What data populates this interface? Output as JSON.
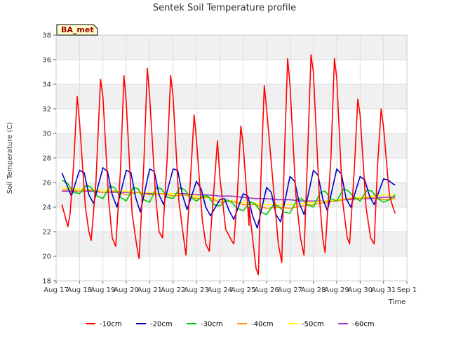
{
  "chart_data": {
    "type": "line",
    "title": "Sentek Soil Temperature profile",
    "xlabel": "Time",
    "ylabel": "Soil Temperature (C)",
    "badge": "BA_met",
    "badge_color": "#990000",
    "badge_fill": "#ffffcc",
    "ylim": [
      18,
      38
    ],
    "yticks": [
      18,
      20,
      22,
      24,
      26,
      28,
      30,
      32,
      34,
      36,
      38
    ],
    "xlim": [
      17,
      32
    ],
    "xticks": [
      {
        "value": 17,
        "label": "Aug 17"
      },
      {
        "value": 18,
        "label": "Aug 18"
      },
      {
        "value": 19,
        "label": "Aug 19"
      },
      {
        "value": 20,
        "label": "Aug 20"
      },
      {
        "value": 21,
        "label": "Aug 21"
      },
      {
        "value": 22,
        "label": "Aug 22"
      },
      {
        "value": 23,
        "label": "Aug 23"
      },
      {
        "value": 24,
        "label": "Aug 24"
      },
      {
        "value": 25,
        "label": "Aug 25"
      },
      {
        "value": 26,
        "label": "Aug 26"
      },
      {
        "value": 27,
        "label": "Aug 27"
      },
      {
        "value": 28,
        "label": "Aug 28"
      },
      {
        "value": 29,
        "label": "Aug 29"
      },
      {
        "value": 30,
        "label": "Aug 30"
      },
      {
        "value": 31,
        "label": "Aug 31"
      },
      {
        "value": 32,
        "label": "Sep 1"
      }
    ],
    "series": [
      {
        "name": "-10cm",
        "color": "#ff0000",
        "x": [
          17.25,
          17.5,
          17.6,
          17.75,
          17.9,
          18.0,
          18.25,
          18.4,
          18.5,
          18.7,
          18.9,
          19.0,
          19.25,
          19.4,
          19.55,
          19.75,
          19.9,
          20.0,
          20.25,
          20.45,
          20.55,
          20.75,
          20.9,
          21.0,
          21.25,
          21.4,
          21.55,
          21.75,
          21.9,
          22.0,
          22.25,
          22.45,
          22.55,
          22.75,
          22.9,
          23.0,
          23.25,
          23.4,
          23.55,
          23.75,
          23.9,
          24.0,
          24.25,
          24.5,
          24.6,
          24.75,
          24.9,
          25.0,
          25.25,
          25.55,
          25.65,
          25.75,
          25.9,
          26.0,
          25.25,
          26.5,
          26.65,
          26.75,
          26.9,
          27.0,
          27.25,
          27.45,
          27.6,
          27.75,
          27.9,
          28.0,
          28.25,
          28.4,
          28.5,
          28.75,
          28.9,
          29.0,
          29.25,
          29.45,
          29.55,
          29.75,
          29.9,
          30.0,
          30.25,
          30.45,
          30.6,
          30.75,
          30.9,
          31.0,
          31.25,
          31.4,
          31.5
        ],
        "values": [
          24.2,
          22.4,
          23.5,
          27.5,
          33.0,
          31.0,
          24.0,
          22.0,
          21.3,
          26.0,
          34.4,
          33.0,
          24.5,
          21.5,
          20.8,
          27.0,
          34.7,
          32.5,
          23.5,
          20.8,
          19.8,
          27.5,
          35.3,
          33.0,
          25.0,
          22.0,
          21.5,
          28.0,
          34.7,
          33.0,
          24.5,
          21.5,
          20.1,
          26.5,
          31.5,
          29.5,
          23.0,
          21.0,
          20.4,
          25.5,
          29.4,
          26.5,
          22.2,
          21.3,
          21.0,
          25.0,
          30.6,
          29.0,
          22.5,
          19.0,
          18.5,
          26.0,
          33.9,
          32.0,
          24.0,
          21.0,
          19.5,
          27.5,
          36.1,
          34.0,
          25.0,
          21.5,
          20.1,
          28.0,
          36.4,
          35.0,
          25.0,
          21.5,
          20.3,
          28.0,
          36.1,
          34.5,
          24.5,
          21.5,
          21.0,
          27.0,
          32.8,
          31.5,
          24.0,
          21.5,
          21.0,
          27.5,
          32.0,
          30.5,
          25.0,
          24.0,
          23.5
        ]
      },
      {
        "name": "-20cm",
        "color": "#0000cc",
        "x": [
          17.25,
          17.5,
          17.65,
          18.0,
          18.2,
          18.4,
          18.6,
          19.0,
          19.2,
          19.4,
          19.6,
          20.0,
          20.2,
          20.4,
          20.6,
          21.0,
          21.2,
          21.4,
          21.6,
          22.0,
          22.2,
          22.4,
          22.6,
          23.0,
          23.2,
          23.4,
          23.6,
          24.0,
          24.2,
          24.4,
          24.6,
          25.0,
          25.2,
          25.4,
          25.6,
          26.0,
          26.2,
          26.4,
          26.6,
          27.0,
          27.2,
          27.4,
          27.6,
          28.0,
          28.2,
          28.4,
          28.6,
          29.0,
          29.2,
          29.4,
          29.6,
          30.0,
          30.2,
          30.4,
          30.6,
          31.0,
          31.2,
          31.4,
          31.5
        ],
        "values": [
          26.8,
          25.6,
          24.9,
          27.0,
          26.8,
          25.0,
          24.3,
          27.2,
          26.9,
          25.0,
          24.0,
          27.0,
          26.8,
          24.8,
          23.6,
          27.1,
          26.9,
          25.0,
          24.2,
          27.1,
          27.0,
          25.0,
          23.8,
          26.1,
          25.5,
          24.0,
          23.3,
          24.6,
          24.7,
          23.7,
          23.0,
          25.1,
          24.9,
          23.3,
          22.3,
          25.6,
          25.2,
          23.4,
          22.8,
          26.5,
          26.1,
          24.3,
          23.4,
          27.0,
          26.6,
          24.7,
          23.7,
          27.1,
          26.7,
          24.7,
          24.0,
          26.5,
          26.2,
          24.9,
          24.2,
          26.3,
          26.2,
          25.9,
          25.8
        ]
      },
      {
        "name": "-30cm",
        "color": "#00cc00",
        "x": [
          17.25,
          17.5,
          17.75,
          18.0,
          18.3,
          18.5,
          18.75,
          19.0,
          19.3,
          19.5,
          19.75,
          20.0,
          20.3,
          20.5,
          20.75,
          21.0,
          21.3,
          21.5,
          21.75,
          22.0,
          22.3,
          22.5,
          22.75,
          23.0,
          23.3,
          23.5,
          23.75,
          24.0,
          24.3,
          24.5,
          24.75,
          25.0,
          25.3,
          25.5,
          25.75,
          26.0,
          26.3,
          26.5,
          26.75,
          27.0,
          27.3,
          27.5,
          27.75,
          28.0,
          28.3,
          28.5,
          28.75,
          29.0,
          29.3,
          29.5,
          29.75,
          30.0,
          30.3,
          30.5,
          30.75,
          31.0,
          31.25,
          31.5
        ],
        "values": [
          26.2,
          25.9,
          25.2,
          25.1,
          25.8,
          25.6,
          24.9,
          24.7,
          25.7,
          25.6,
          24.8,
          24.5,
          25.6,
          25.5,
          24.6,
          24.4,
          25.6,
          25.5,
          24.8,
          24.7,
          25.6,
          25.4,
          24.8,
          24.5,
          24.9,
          24.9,
          24.2,
          24.1,
          24.6,
          24.4,
          23.9,
          23.7,
          24.4,
          24.3,
          23.6,
          23.4,
          24.2,
          24.1,
          23.6,
          23.5,
          24.6,
          24.7,
          24.2,
          24.0,
          25.2,
          25.3,
          24.7,
          24.5,
          25.5,
          25.3,
          24.8,
          24.5,
          25.4,
          25.3,
          24.7,
          24.4,
          24.6,
          25.0
        ]
      },
      {
        "name": "-40cm",
        "color": "#ff9900",
        "x": [
          17.25,
          17.5,
          18.0,
          18.5,
          19.0,
          19.5,
          20.0,
          20.5,
          21.0,
          21.5,
          22.0,
          22.5,
          23.0,
          23.5,
          24.0,
          24.5,
          25.0,
          25.5,
          26.0,
          26.5,
          27.0,
          27.5,
          28.0,
          28.5,
          29.0,
          29.5,
          30.0,
          30.5,
          31.0,
          31.5
        ],
        "values": [
          25.4,
          25.4,
          25.3,
          25.4,
          25.2,
          25.3,
          25.0,
          25.2,
          25.0,
          25.1,
          24.9,
          25.0,
          24.7,
          24.8,
          24.4,
          24.5,
          24.2,
          24.2,
          23.9,
          24.0,
          23.9,
          24.1,
          24.2,
          24.4,
          24.5,
          24.7,
          24.7,
          24.8,
          24.6,
          24.7
        ]
      },
      {
        "name": "-50cm",
        "color": "#ffff00",
        "x": [
          17.25,
          17.5,
          18.0,
          18.5,
          19.0,
          19.5,
          20.0,
          20.5,
          21.0,
          21.5,
          22.0,
          22.5,
          23.0,
          23.5,
          24.0,
          24.5,
          25.0,
          25.5,
          26.0,
          26.5,
          27.0,
          27.5,
          28.0,
          28.5,
          29.0,
          29.5,
          30.0,
          30.5,
          31.0,
          31.5
        ],
        "values": [
          25.6,
          25.5,
          25.5,
          25.4,
          25.4,
          25.3,
          25.3,
          25.2,
          25.2,
          25.1,
          25.1,
          25.0,
          24.9,
          24.8,
          24.6,
          24.5,
          24.4,
          24.3,
          24.2,
          24.2,
          24.2,
          24.3,
          24.4,
          24.5,
          24.6,
          24.7,
          24.8,
          24.9,
          25.0,
          25.0
        ]
      },
      {
        "name": "-60cm",
        "color": "#9933cc",
        "x": [
          17.25,
          17.5,
          18.0,
          18.5,
          19.0,
          19.5,
          20.0,
          20.5,
          21.0,
          21.5,
          22.0,
          22.5,
          23.0,
          23.5,
          24.0,
          24.5,
          25.0,
          25.5,
          26.0,
          26.5,
          27.0,
          27.5,
          28.0,
          28.5,
          29.0,
          29.5,
          30.0,
          30.5,
          31.0,
          31.5
        ],
        "values": [
          25.3,
          25.3,
          25.3,
          25.3,
          25.2,
          25.2,
          25.2,
          25.2,
          25.1,
          25.1,
          25.1,
          25.1,
          25.0,
          25.0,
          24.9,
          24.9,
          24.8,
          24.7,
          24.7,
          24.6,
          24.6,
          24.5,
          24.5,
          24.5,
          24.6,
          24.6,
          24.7,
          24.7,
          24.8,
          24.8
        ]
      }
    ]
  }
}
